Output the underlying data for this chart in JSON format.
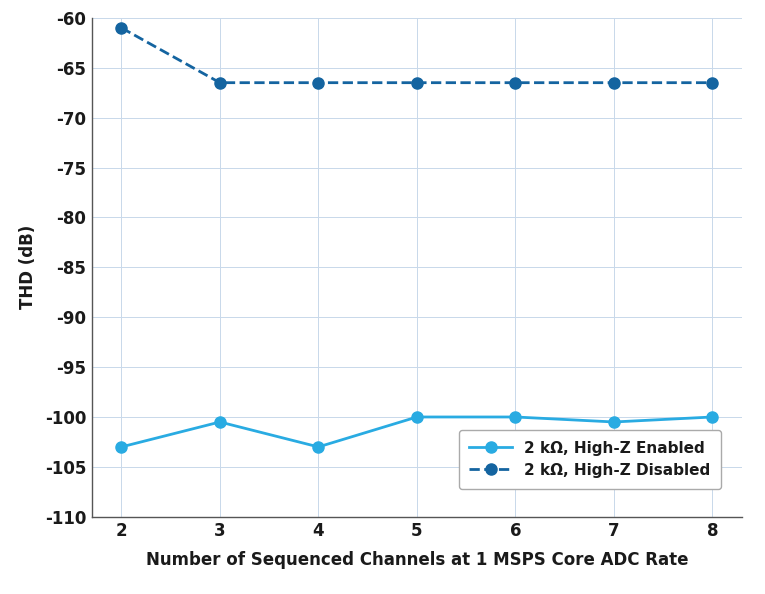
{
  "x": [
    2,
    3,
    4,
    5,
    6,
    7,
    8
  ],
  "highz_enabled_y": [
    -103.0,
    -100.5,
    -103.0,
    -100.0,
    -100.0,
    -100.5,
    -100.0
  ],
  "highz_disabled_y": [
    -61.0,
    -66.5,
    -66.5,
    -66.5,
    -66.5,
    -66.5,
    -66.5
  ],
  "xlabel": "Number of Sequenced Channels at 1 MSPS Core ADC Rate",
  "ylabel": "THD (dB)",
  "ylim": [
    -110,
    -60
  ],
  "xlim": [
    1.7,
    8.3
  ],
  "yticks": [
    -110,
    -105,
    -100,
    -95,
    -90,
    -85,
    -80,
    -75,
    -70,
    -65,
    -60
  ],
  "xticks": [
    2,
    3,
    4,
    5,
    6,
    7,
    8
  ],
  "line_color_enabled": "#29abe2",
  "line_color_disabled": "#1464a0",
  "legend_label_solid": "2 kΩ, High-Z Enabled",
  "legend_label_dashed": "2 kΩ, High-Z Disabled",
  "marker_size": 8,
  "background_color": "#ffffff",
  "grid_color": "#c8d8ea",
  "xlabel_fontsize": 12,
  "ylabel_fontsize": 12,
  "tick_fontsize": 12,
  "legend_fontsize": 11
}
